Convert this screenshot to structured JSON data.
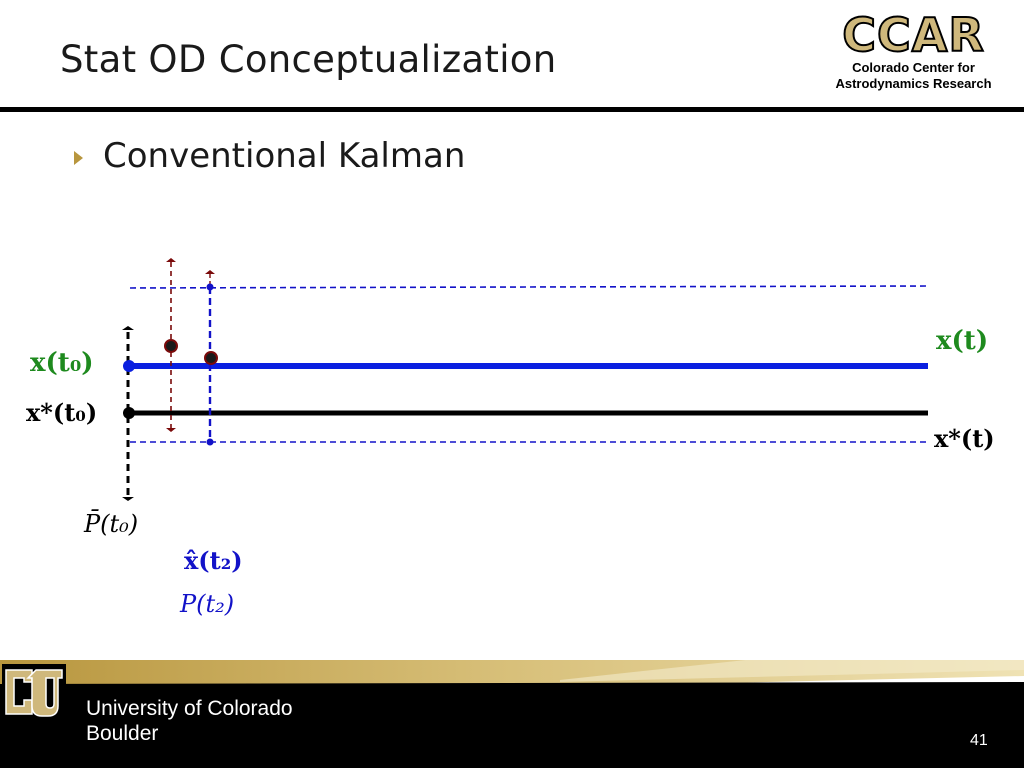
{
  "slide": {
    "title": "Stat OD Conceptualization",
    "bullet": "Conventional Kalman",
    "page_number": "41"
  },
  "header_logo": {
    "mark": "CCAR",
    "subtitle_line1": "Colorado Center for",
    "subtitle_line2": "Astrodynamics Research"
  },
  "diagram": {
    "labels": {
      "x_t0": "x(t₀)",
      "xstar_t0": "x*(t₀)",
      "x_t": "x(t)",
      "xstar_t": "x*(t)",
      "pbar_t0": "P̄(t₀)",
      "xhat_t2": "x̂(t₂)",
      "p_t2": "P(t₂)"
    },
    "colors": {
      "true_state": "#0a1fe0",
      "reference": "#000000",
      "estimate": "#1212c8",
      "prior_covariance": "#7a0a0a",
      "label_green": "#1e8a1e"
    }
  },
  "footer": {
    "university_line1": "University of Colorado",
    "university_line2": "Boulder",
    "colors": {
      "background": "#000000",
      "gold": "#cfb87c"
    }
  }
}
